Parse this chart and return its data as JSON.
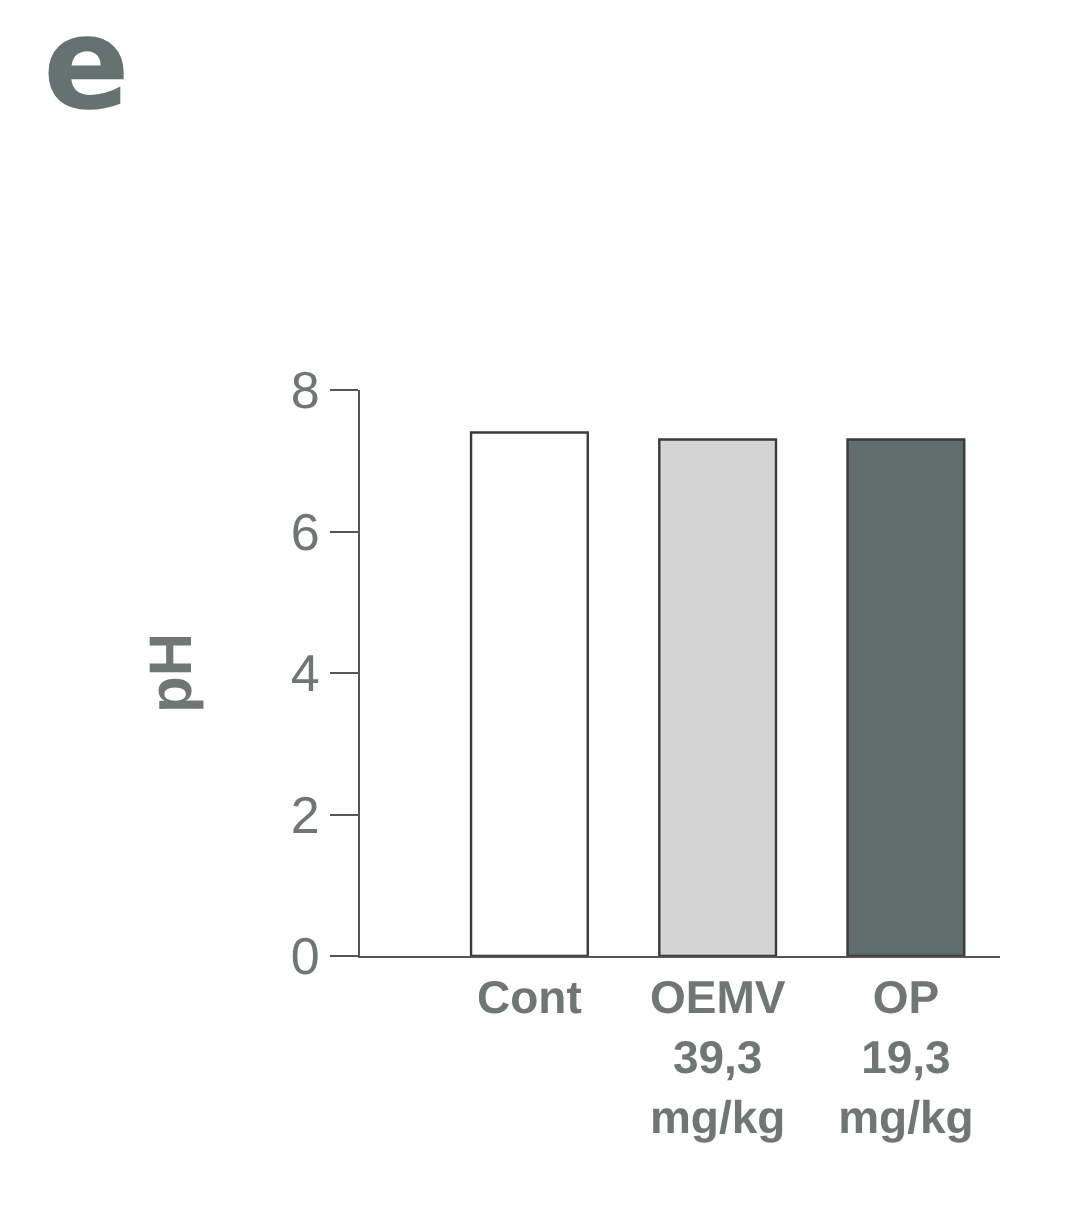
{
  "chart_data": {
    "type": "bar",
    "title": "e",
    "ylabel": "pH",
    "categories": [
      "Cont",
      "OEMV\n39,3\nmg/kg",
      "OP\n19,3\nmg/kg"
    ],
    "values": [
      7.4,
      7.3,
      7.3
    ],
    "colors": [
      "#ffffff",
      "#d4d4d4",
      "#5f6e6a"
    ],
    "ylim": [
      0,
      8
    ],
    "yticks": [
      0,
      2,
      4,
      6,
      8
    ],
    "grid": false
  }
}
